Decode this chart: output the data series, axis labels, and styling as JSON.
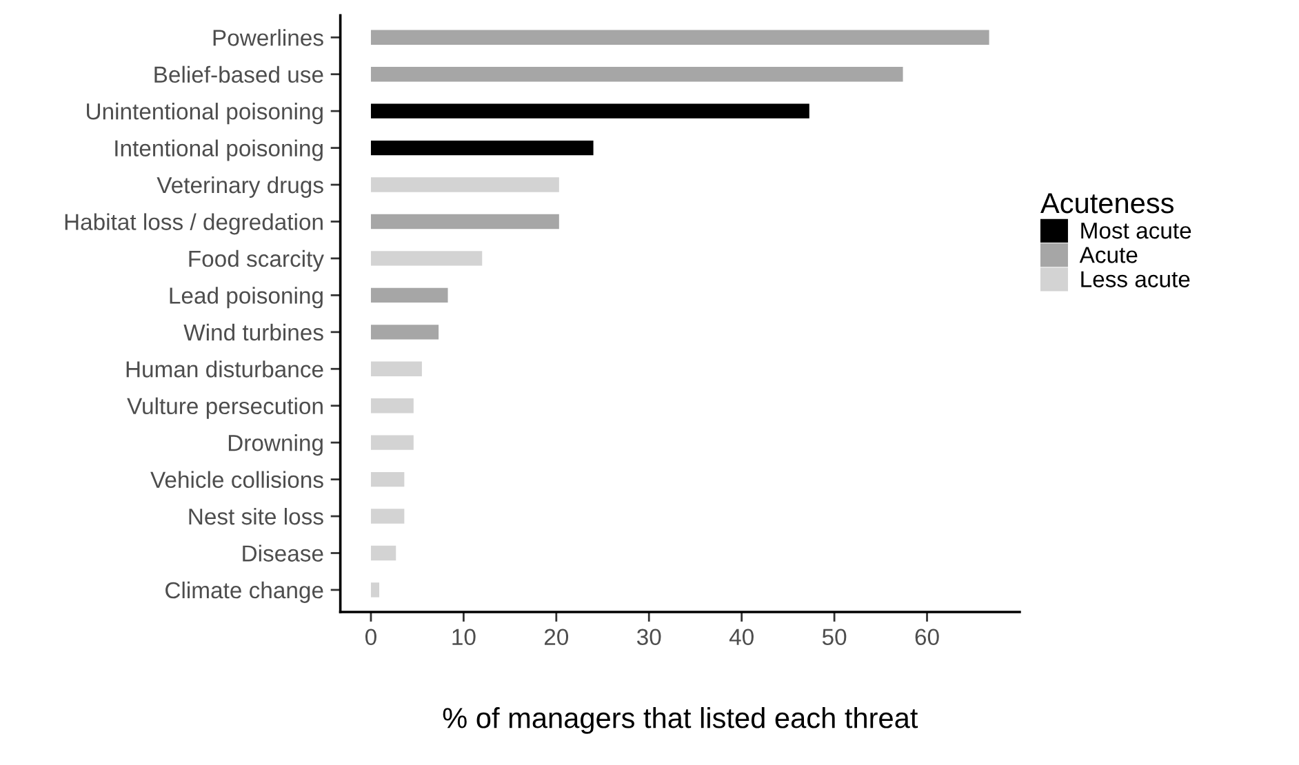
{
  "chart_data": {
    "type": "bar",
    "orientation": "horizontal",
    "xlabel": "% of managers that listed each threat",
    "legend_title": "Acuteness",
    "legend": "right",
    "grid": false,
    "categories": [
      "Powerlines",
      "Belief-based use",
      "Unintentional poisoning",
      "Intentional poisoning",
      "Veterinary drugs",
      "Habitat loss / degredation",
      "Food scarcity",
      "Lead poisoning",
      "Wind turbines",
      "Human disturbance",
      "Vulture persecution",
      "Drowning",
      "Vehicle collisions",
      "Nest site loss",
      "Disease",
      "Climate change"
    ],
    "series": [
      {
        "name": "Most acute",
        "color": "#000000",
        "values": [
          null,
          null,
          47.3,
          24.0,
          null,
          null,
          null,
          null,
          null,
          null,
          null,
          null,
          null,
          null,
          null,
          null
        ]
      },
      {
        "name": "Acute",
        "color": "#a6a6a6",
        "values": [
          66.7,
          57.4,
          null,
          null,
          null,
          20.3,
          null,
          8.3,
          7.3,
          null,
          null,
          null,
          null,
          null,
          null,
          null
        ]
      },
      {
        "name": "Less acute",
        "color": "#d3d3d3",
        "values": [
          null,
          null,
          null,
          null,
          20.3,
          null,
          12.0,
          null,
          null,
          5.5,
          4.6,
          4.6,
          3.6,
          3.6,
          2.7,
          0.9
        ]
      }
    ],
    "xlim": [
      -3.3,
      70
    ],
    "xticks": [
      0,
      10,
      20,
      30,
      40,
      50,
      60
    ]
  }
}
